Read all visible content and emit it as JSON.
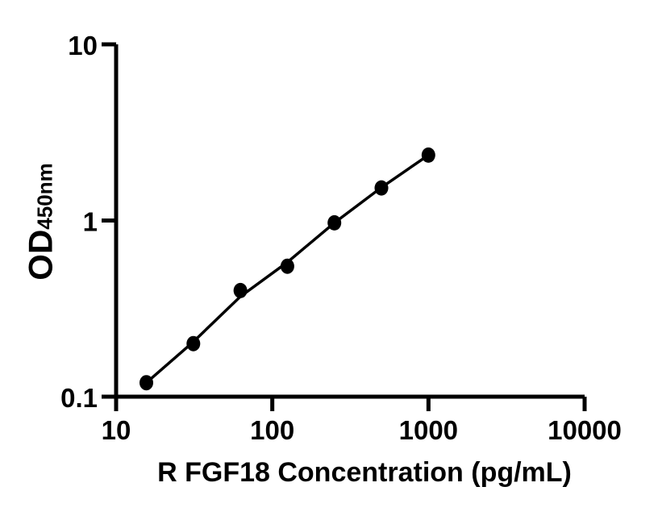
{
  "figure": {
    "background_color": "#ffffff",
    "foreground_color": "#000000"
  },
  "chart_data": {
    "type": "scatter",
    "subtype": "line-with-markers",
    "title": "",
    "xlabel": "R FGF18 Concentration (pg/mL)",
    "ylabel_main": "OD",
    "ylabel_sub": "450nm",
    "x_scale": "log10",
    "y_scale": "log10",
    "xlim": [
      10,
      10000
    ],
    "ylim": [
      0.1,
      10
    ],
    "grid": false,
    "legend": false,
    "marker_color": "#000000",
    "line_color": "#000000",
    "x_ticks": [
      {
        "value": 10,
        "label": "10"
      },
      {
        "value": 100,
        "label": "100"
      },
      {
        "value": 1000,
        "label": "1000"
      },
      {
        "value": 10000,
        "label": "10000"
      }
    ],
    "y_ticks": [
      {
        "value": 0.1,
        "label": "0.1"
      },
      {
        "value": 1,
        "label": "1"
      },
      {
        "value": 10,
        "label": "10"
      }
    ],
    "points": [
      {
        "x": 15.625,
        "od": 0.12
      },
      {
        "x": 31.25,
        "od": 0.2
      },
      {
        "x": 62.5,
        "od": 0.4
      },
      {
        "x": 125,
        "od": 0.55
      },
      {
        "x": 250,
        "od": 0.97
      },
      {
        "x": 500,
        "od": 1.53
      },
      {
        "x": 1000,
        "od": 2.35
      }
    ],
    "fit_curve": [
      {
        "x": 15.625,
        "od": 0.12
      },
      {
        "x": 31.25,
        "od": 0.205
      },
      {
        "x": 62.5,
        "od": 0.37
      },
      {
        "x": 125,
        "od": 0.58
      },
      {
        "x": 250,
        "od": 0.97
      },
      {
        "x": 500,
        "od": 1.54
      },
      {
        "x": 1000,
        "od": 2.35
      }
    ]
  }
}
